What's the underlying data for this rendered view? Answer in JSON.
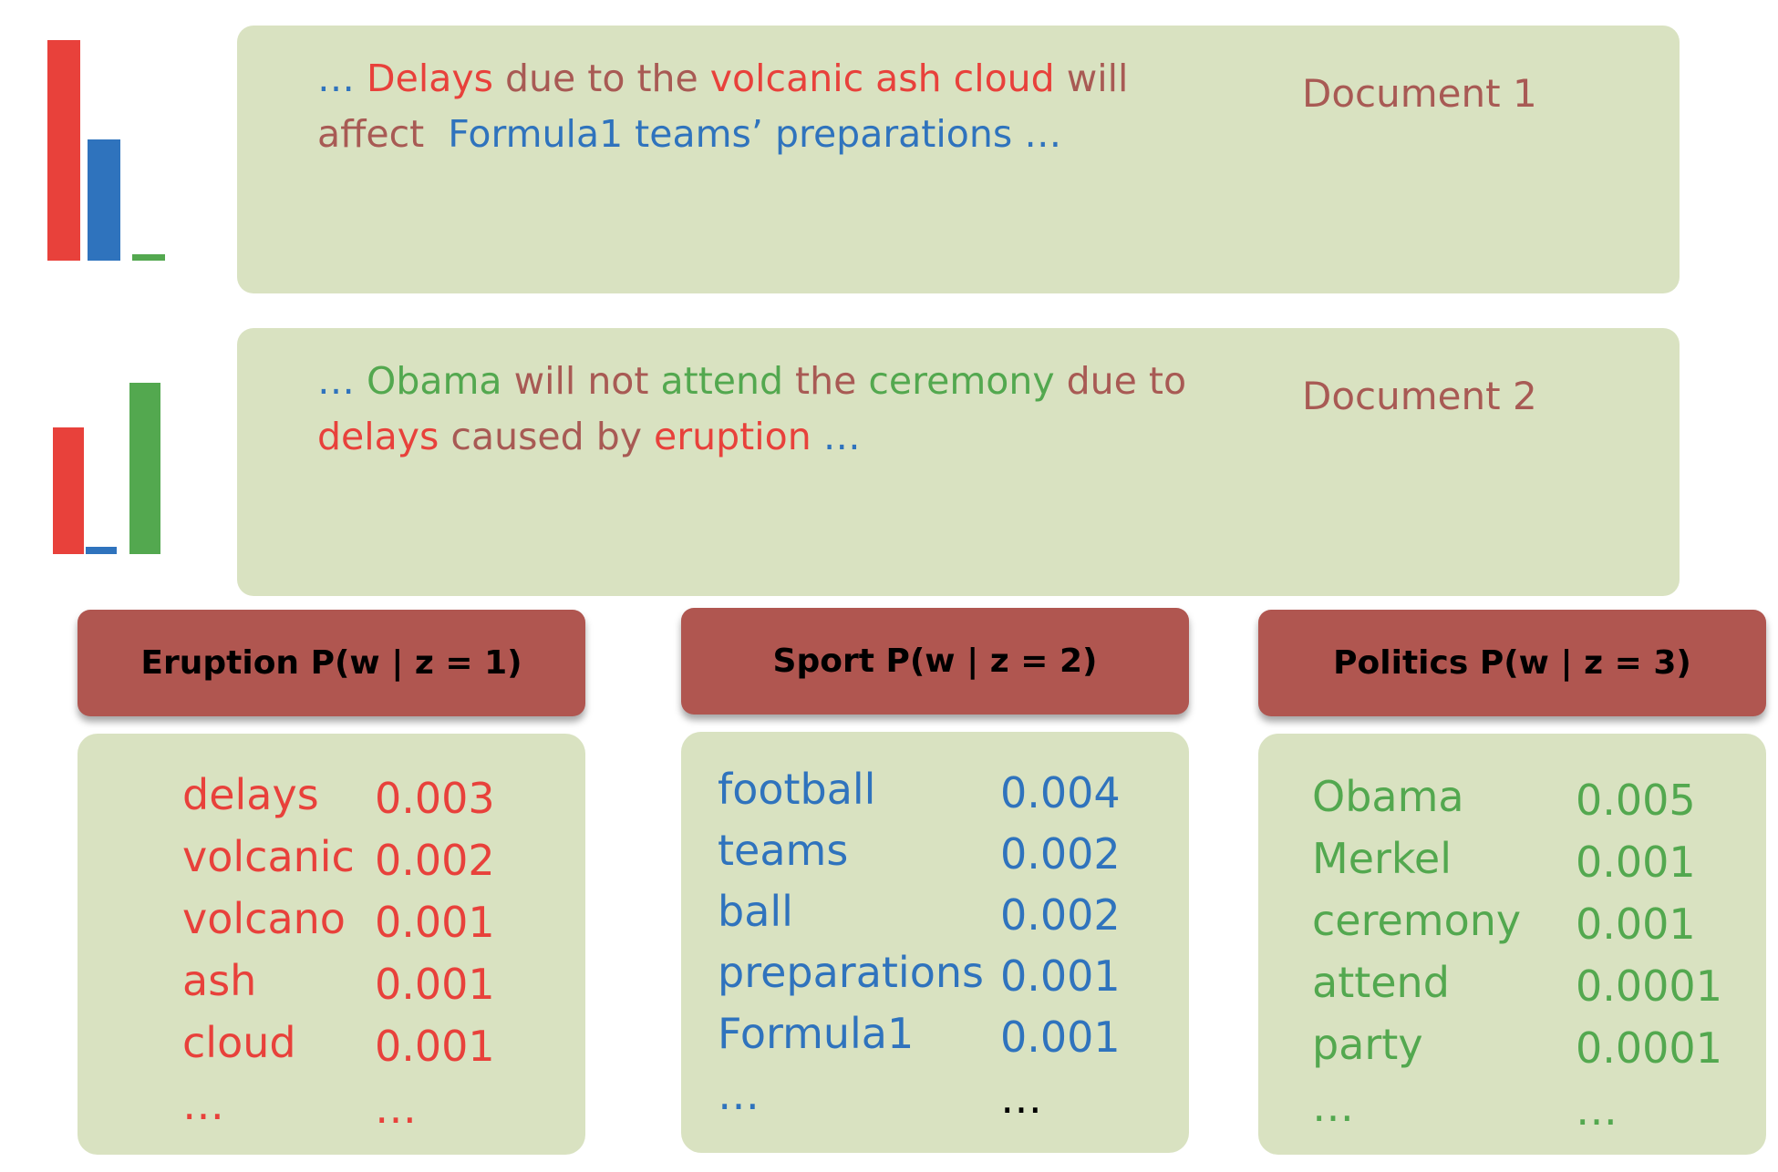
{
  "colors": {
    "eruption": "#e8413b",
    "sport": "#2f73bd",
    "politics": "#53a84f",
    "neutral": "#a85a54",
    "panel": "#d9e2c1",
    "header": "#b05650"
  },
  "documents": [
    {
      "label": "Document 1",
      "topic_proportions": {
        "eruption": 1.0,
        "sport": 0.55,
        "politics": 0.03
      },
      "lines": [
        [
          {
            "text": "… ",
            "topic": "sport"
          },
          {
            "text": "Delays",
            "topic": "eruption"
          },
          {
            "text": " due to the ",
            "topic": "neutral"
          },
          {
            "text": "volcanic ash cloud",
            "topic": "eruption"
          },
          {
            "text": " will",
            "topic": "neutral"
          }
        ],
        [
          {
            "text": "affect  ",
            "topic": "neutral"
          },
          {
            "text": "Formula1 teams’ preparations …",
            "topic": "sport"
          }
        ]
      ]
    },
    {
      "label": "Document 2",
      "topic_proportions": {
        "eruption": 0.74,
        "sport": 0.04,
        "politics": 1.0
      },
      "lines": [
        [
          {
            "text": "… ",
            "topic": "sport"
          },
          {
            "text": "Obama",
            "topic": "politics"
          },
          {
            "text": " will not ",
            "topic": "neutral"
          },
          {
            "text": "attend",
            "topic": "politics"
          },
          {
            "text": " the ",
            "topic": "neutral"
          },
          {
            "text": "ceremony",
            "topic": "politics"
          },
          {
            "text": " due to",
            "topic": "neutral"
          }
        ],
        [
          {
            "text": "delays",
            "topic": "eruption"
          },
          {
            "text": " caused by ",
            "topic": "neutral"
          },
          {
            "text": "eruption",
            "topic": "eruption"
          },
          {
            "text": " …",
            "topic": "sport"
          }
        ]
      ]
    }
  ],
  "topics": [
    {
      "title": "Eruption P(w | z = 1)",
      "color_key": "eruption",
      "words": [
        "delays",
        "volcanic",
        "volcano",
        "ash",
        "cloud",
        "…"
      ],
      "probs": [
        "0.003",
        "0.002",
        "0.001",
        "0.001",
        "0.001",
        "…"
      ]
    },
    {
      "title": "Sport P(w | z = 2)",
      "color_key": "sport",
      "words": [
        "football",
        "teams",
        "ball",
        "preparations",
        "Formula1",
        "…"
      ],
      "probs": [
        "0.004",
        "0.002",
        "0.002",
        "0.001",
        "0.001",
        "…"
      ]
    },
    {
      "title": "Politics P(w | z = 3)",
      "color_key": "politics",
      "words": [
        "Obama",
        "Merkel",
        "ceremony",
        "attend",
        "party",
        "…"
      ],
      "probs": [
        "0.005",
        "0.001",
        "0.001",
        "0.0001",
        "0.0001",
        "…"
      ]
    }
  ]
}
